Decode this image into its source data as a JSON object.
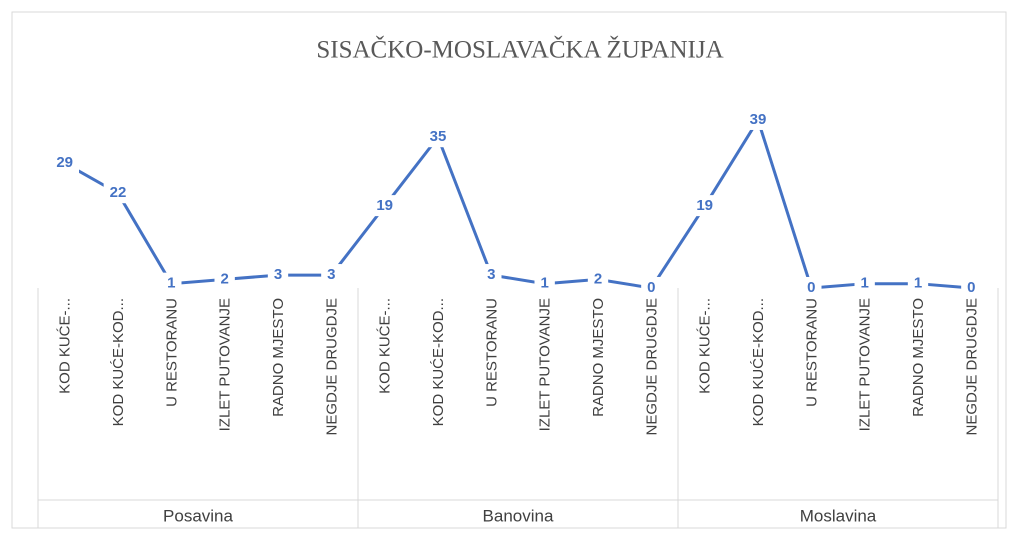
{
  "chart_data": {
    "type": "line",
    "title": "SISAČKO-MOSLAVAČKA ŽUPANIJA",
    "groups": [
      "Posavina",
      "Banovina",
      "Moslavina"
    ],
    "categories": [
      "KOD KUĆE-...",
      "KOD KUĆE-KOD...",
      "U RESTORANU",
      "IZLET PUTOVANJE",
      "RADNO MJESTO",
      "NEGDJE DRUGDJE",
      "KOD KUĆE-...",
      "KOD KUĆE-KOD...",
      "U RESTORANU",
      "IZLET PUTOVANJE",
      "RADNO MJESTO",
      "NEGDJE DRUGDJE",
      "KOD KUĆE-...",
      "KOD KUĆE-KOD...",
      "U RESTORANU",
      "IZLET PUTOVANJE",
      "RADNO MJESTO",
      "NEGDJE DRUGDJE"
    ],
    "values": [
      29,
      22,
      1,
      2,
      3,
      3,
      19,
      35,
      3,
      1,
      2,
      0,
      19,
      39,
      0,
      1,
      1,
      0
    ],
    "color": "#4472c4"
  }
}
